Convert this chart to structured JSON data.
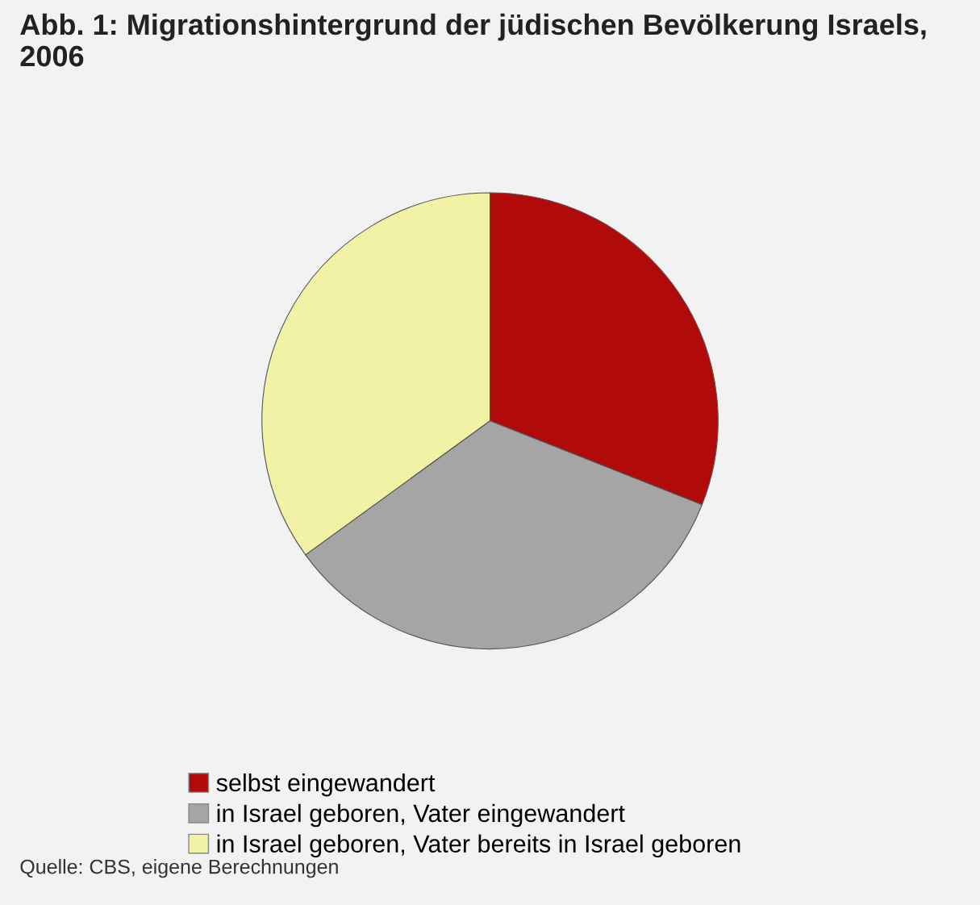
{
  "chart_data": {
    "type": "pie",
    "title": "Abb. 1: Migrationshintergrund der jüdischen Bevölkerung Israels, 2006",
    "categories": [
      "selbst eingewandert",
      "in Israel geboren, Vater eingewandert",
      "in Israel geboren, Vater bereits in Israel geboren"
    ],
    "values": [
      31,
      34,
      35
    ],
    "colors": [
      "#b00a0a",
      "#a5a5a5",
      "#f2f2a6"
    ],
    "legend": "bottom",
    "annotations": [
      "Quelle: CBS, eigene Berechnungen"
    ]
  }
}
